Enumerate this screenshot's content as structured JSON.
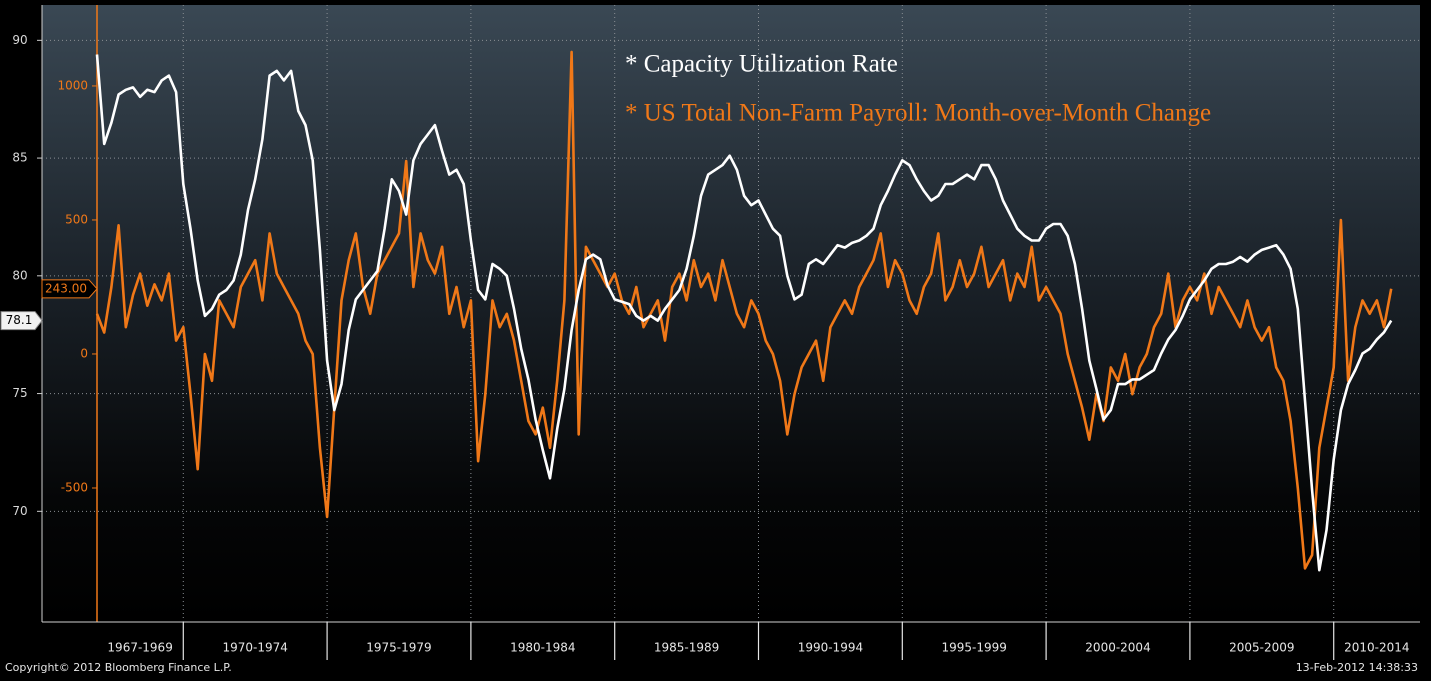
{
  "chart_data": {
    "type": "line",
    "source": "Copyright© 2012 Bloomberg Finance L.P.",
    "date": "13-Feb-2012 14:38:33",
    "legend": "top-right",
    "grid": true,
    "xlim": [
      1967,
      2013
    ],
    "ylim": [
      65.3,
      91.5
    ],
    "yticks": [
      70,
      75,
      80,
      85,
      90
    ],
    "y2lim": [
      -1000,
      1302
    ],
    "y2ticks": [
      -500,
      0,
      500,
      1000
    ],
    "x_bands": [
      {
        "label": "1967-1969",
        "from": 1967,
        "to": 1970
      },
      {
        "label": "1970-1974",
        "from": 1970,
        "to": 1975
      },
      {
        "label": "1975-1979",
        "from": 1975,
        "to": 1980
      },
      {
        "label": "1980-1984",
        "from": 1980,
        "to": 1985
      },
      {
        "label": "1985-1989",
        "from": 1985,
        "to": 1990
      },
      {
        "label": "1990-1994",
        "from": 1990,
        "to": 1995
      },
      {
        "label": "1995-1999",
        "from": 1995,
        "to": 2000
      },
      {
        "label": "2000-2004",
        "from": 2000,
        "to": 2005
      },
      {
        "label": "2005-2009",
        "from": 2005,
        "to": 2010
      },
      {
        "label": "2010-2014",
        "from": 2010,
        "to": 2015
      }
    ],
    "x": [
      1967,
      1967.25,
      1967.5,
      1967.75,
      1968,
      1968.25,
      1968.5,
      1968.75,
      1969,
      1969.25,
      1969.5,
      1969.75,
      1970,
      1970.25,
      1970.5,
      1970.75,
      1971,
      1971.25,
      1971.5,
      1971.75,
      1972,
      1972.25,
      1972.5,
      1972.75,
      1973,
      1973.25,
      1973.5,
      1973.75,
      1974,
      1974.25,
      1974.5,
      1974.75,
      1975,
      1975.25,
      1975.5,
      1975.75,
      1976,
      1976.25,
      1976.5,
      1976.75,
      1977,
      1977.25,
      1977.5,
      1977.75,
      1978,
      1978.25,
      1978.5,
      1978.75,
      1979,
      1979.25,
      1979.5,
      1979.75,
      1980,
      1980.25,
      1980.5,
      1980.75,
      1981,
      1981.25,
      1981.5,
      1981.75,
      1982,
      1982.25,
      1982.5,
      1982.75,
      1983,
      1983.25,
      1983.5,
      1983.75,
      1984,
      1984.25,
      1984.5,
      1984.75,
      1985,
      1985.25,
      1985.5,
      1985.75,
      1986,
      1986.25,
      1986.5,
      1986.75,
      1987,
      1987.25,
      1987.5,
      1987.75,
      1988,
      1988.25,
      1988.5,
      1988.75,
      1989,
      1989.25,
      1989.5,
      1989.75,
      1990,
      1990.25,
      1990.5,
      1990.75,
      1991,
      1991.25,
      1991.5,
      1991.75,
      1992,
      1992.25,
      1992.5,
      1992.75,
      1993,
      1993.25,
      1993.5,
      1993.75,
      1994,
      1994.25,
      1994.5,
      1994.75,
      1995,
      1995.25,
      1995.5,
      1995.75,
      1996,
      1996.25,
      1996.5,
      1996.75,
      1997,
      1997.25,
      1997.5,
      1997.75,
      1998,
      1998.25,
      1998.5,
      1998.75,
      1999,
      1999.25,
      1999.5,
      1999.75,
      2000,
      2000.25,
      2000.5,
      2000.75,
      2001,
      2001.25,
      2001.5,
      2001.75,
      2002,
      2002.25,
      2002.5,
      2002.75,
      2003,
      2003.25,
      2003.5,
      2003.75,
      2004,
      2004.25,
      2004.5,
      2004.75,
      2005,
      2005.25,
      2005.5,
      2005.75,
      2006,
      2006.25,
      2006.5,
      2006.75,
      2007,
      2007.25,
      2007.5,
      2007.75,
      2008,
      2008.25,
      2008.5,
      2008.75,
      2009,
      2009.25,
      2009.5,
      2009.75,
      2010,
      2010.25,
      2010.5,
      2010.75,
      2011,
      2011.25,
      2011.5,
      2011.75,
      2012
    ],
    "series": [
      {
        "name": "* US Total Non-Farm Payroll: Month-over-Month Change",
        "color": "#f07818",
        "axis": "y2",
        "current_marker": {
          "value": 243,
          "label": "243.00"
        },
        "values": [
          150,
          80,
          250,
          480,
          100,
          220,
          300,
          180,
          260,
          200,
          300,
          50,
          100,
          -150,
          -430,
          0,
          -100,
          200,
          150,
          100,
          250,
          300,
          350,
          200,
          450,
          300,
          250,
          200,
          150,
          50,
          0,
          -350,
          -608,
          -200,
          200,
          350,
          450,
          250,
          150,
          300,
          350,
          400,
          450,
          720,
          250,
          450,
          350,
          300,
          400,
          150,
          250,
          100,
          200,
          -400,
          -150,
          200,
          100,
          150,
          50,
          -100,
          -250,
          -300,
          -200,
          -350,
          -100,
          200,
          1127,
          -300,
          400,
          350,
          300,
          250,
          300,
          200,
          150,
          250,
          100,
          150,
          200,
          50,
          250,
          300,
          200,
          350,
          250,
          300,
          200,
          350,
          250,
          150,
          100,
          200,
          150,
          50,
          0,
          -100,
          -300,
          -150,
          -50,
          0,
          50,
          -100,
          100,
          150,
          200,
          150,
          250,
          300,
          350,
          450,
          250,
          350,
          300,
          200,
          150,
          250,
          300,
          450,
          200,
          250,
          350,
          250,
          300,
          400,
          250,
          300,
          350,
          200,
          300,
          250,
          400,
          200,
          250,
          200,
          150,
          0,
          -100,
          -200,
          -320,
          -150,
          -250,
          -50,
          -100,
          0,
          -150,
          -50,
          0,
          100,
          150,
          300,
          100,
          200,
          250,
          200,
          300,
          150,
          250,
          200,
          150,
          100,
          200,
          100,
          50,
          100,
          -50,
          -100,
          -250,
          -500,
          -800,
          -750,
          -350,
          -200,
          -50,
          500,
          -100,
          100,
          200,
          150,
          200,
          100,
          243
        ]
      },
      {
        "name": "* Capacity Utilization Rate",
        "color": "#ffffff",
        "current_marker": 78.1,
        "values": [
          89.4,
          85.6,
          86.5,
          87.7,
          87.9,
          88.0,
          87.6,
          87.9,
          87.8,
          88.3,
          88.5,
          87.8,
          83.9,
          82.0,
          79.8,
          78.3,
          78.6,
          79.2,
          79.4,
          79.8,
          80.9,
          82.8,
          84.1,
          85.8,
          88.5,
          88.7,
          88.3,
          88.7,
          87.0,
          86.4,
          84.9,
          81.1,
          76.4,
          74.3,
          75.4,
          77.7,
          79.0,
          79.4,
          79.8,
          80.2,
          82.0,
          84.1,
          83.6,
          82.6,
          84.9,
          85.6,
          86.0,
          86.4,
          85.3,
          84.3,
          84.5,
          83.9,
          81.5,
          79.4,
          79.0,
          80.5,
          80.3,
          80.0,
          78.6,
          76.9,
          75.6,
          73.9,
          72.6,
          71.4,
          73.5,
          75.2,
          77.7,
          79.4,
          80.7,
          80.9,
          80.7,
          79.6,
          79.0,
          78.9,
          78.8,
          78.3,
          78.1,
          78.3,
          78.1,
          78.6,
          79.0,
          79.4,
          80.3,
          81.7,
          83.4,
          84.3,
          84.5,
          84.7,
          85.1,
          84.5,
          83.4,
          83.0,
          83.2,
          82.6,
          82.0,
          81.7,
          80.0,
          79.0,
          79.2,
          80.5,
          80.7,
          80.5,
          80.9,
          81.3,
          81.2,
          81.4,
          81.5,
          81.7,
          82.0,
          83.0,
          83.6,
          84.3,
          84.9,
          84.7,
          84.1,
          83.6,
          83.2,
          83.4,
          83.9,
          83.9,
          84.1,
          84.3,
          84.1,
          84.7,
          84.7,
          84.1,
          83.2,
          82.6,
          82.0,
          81.7,
          81.5,
          81.5,
          82.0,
          82.2,
          82.2,
          81.7,
          80.5,
          78.6,
          76.4,
          75.2,
          73.9,
          74.3,
          75.4,
          75.4,
          75.6,
          75.6,
          75.8,
          76.0,
          76.7,
          77.3,
          77.7,
          78.3,
          79.0,
          79.4,
          79.8,
          80.3,
          80.5,
          80.5,
          80.6,
          80.8,
          80.6,
          80.9,
          81.1,
          81.2,
          81.3,
          80.9,
          80.3,
          78.6,
          74.7,
          70.9,
          67.5,
          69.2,
          72.2,
          74.3,
          75.4,
          76.0,
          76.7,
          76.9,
          77.3,
          77.6,
          78.1
        ]
      }
    ]
  }
}
